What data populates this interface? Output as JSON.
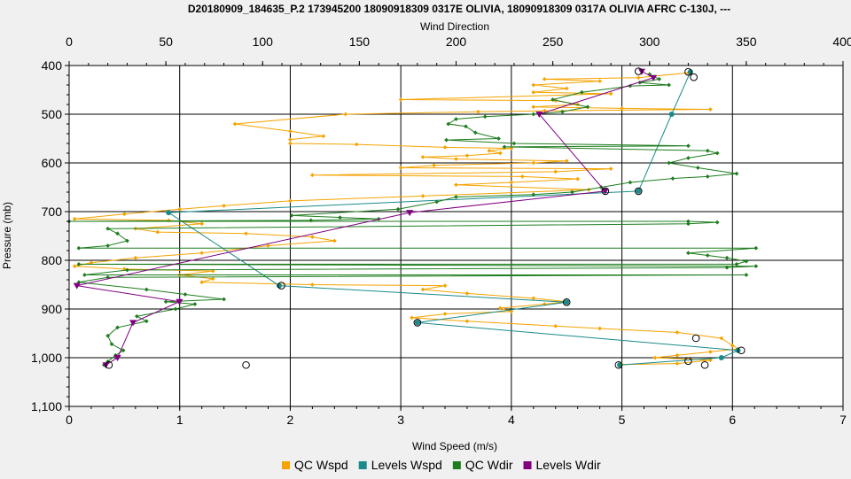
{
  "chart_data": {
    "type": "line",
    "title": "D20180909_184635_P.2 173945200 18090918309 0317E OLIVIA, 18090918309 0317A OLIVIA AFRC C-130J, ---",
    "xlabel_top": "Wind Direction",
    "xlabel_bottom": "Wind Speed (m/s)",
    "ylabel": "Pressure (mb)",
    "ylim": [
      400,
      1100
    ],
    "y_inverted": true,
    "xlim_top": [
      0,
      400
    ],
    "xlim_bottom": [
      0,
      7
    ],
    "xticks_top": [
      "0",
      "50",
      "100",
      "150",
      "200",
      "250",
      "300",
      "350",
      "400"
    ],
    "xticks_bottom": [
      "0",
      "1",
      "2",
      "3",
      "4",
      "5",
      "6",
      "7"
    ],
    "yticks": [
      "400",
      "500",
      "600",
      "700",
      "800",
      "900",
      "1,000",
      "1,100"
    ],
    "grid": true,
    "legend_position": "bottom",
    "series": [
      {
        "name": "QC Wspd",
        "axis": "bottom",
        "color": "#f5a300",
        "marker": "diamond",
        "points": [
          [
            5.6,
            415
          ],
          [
            5.15,
            425
          ],
          [
            4.3,
            428
          ],
          [
            4.8,
            432
          ],
          [
            4.2,
            440
          ],
          [
            4.5,
            447
          ],
          [
            4.2,
            455
          ],
          [
            4.9,
            458
          ],
          [
            3.0,
            470
          ],
          [
            4.4,
            472
          ],
          [
            4.6,
            480
          ],
          [
            4.2,
            485
          ],
          [
            5.0,
            488
          ],
          [
            5.8,
            490
          ],
          [
            4.3,
            493
          ],
          [
            3.7,
            495
          ],
          [
            2.5,
            500
          ],
          [
            1.5,
            520
          ],
          [
            2.0,
            535
          ],
          [
            2.3,
            545
          ],
          [
            2.0,
            552
          ],
          [
            2.0,
            560
          ],
          [
            2.6,
            562
          ],
          [
            3.4,
            568
          ],
          [
            4.0,
            570
          ],
          [
            3.8,
            575
          ],
          [
            3.9,
            580
          ],
          [
            3.6,
            585
          ],
          [
            3.2,
            588
          ],
          [
            3.5,
            592
          ],
          [
            4.5,
            596
          ],
          [
            4.2,
            600
          ],
          [
            3.3,
            605
          ],
          [
            3.0,
            610
          ],
          [
            4.9,
            612
          ],
          [
            4.4,
            618
          ],
          [
            2.2,
            625
          ],
          [
            4.1,
            628
          ],
          [
            4.6,
            633
          ],
          [
            4.0,
            640
          ],
          [
            3.5,
            645
          ],
          [
            4.7,
            655
          ],
          [
            3.2,
            668
          ],
          [
            2.0,
            678
          ],
          [
            1.4,
            688
          ],
          [
            1.0,
            695
          ],
          [
            0.5,
            705
          ],
          [
            0.05,
            715
          ],
          [
            0.9,
            718
          ],
          [
            1.2,
            725
          ],
          [
            0.6,
            735
          ],
          [
            0.8,
            742
          ],
          [
            1.6,
            745
          ],
          [
            2.2,
            752
          ],
          [
            2.4,
            760
          ],
          [
            1.8,
            770
          ],
          [
            1.2,
            785
          ],
          [
            0.6,
            795
          ],
          [
            0.2,
            805
          ],
          [
            0.05,
            812
          ],
          [
            0.5,
            818
          ],
          [
            1.3,
            822
          ],
          [
            1.0,
            830
          ],
          [
            1.3,
            838
          ],
          [
            1.2,
            845
          ],
          [
            2.2,
            850
          ],
          [
            3.4,
            852
          ],
          [
            3.2,
            860
          ],
          [
            3.6,
            868
          ],
          [
            4.2,
            878
          ],
          [
            4.5,
            885
          ],
          [
            4.3,
            890
          ],
          [
            3.9,
            898
          ],
          [
            4.0,
            905
          ],
          [
            3.4,
            910
          ],
          [
            3.1,
            918
          ],
          [
            3.6,
            925
          ],
          [
            4.4,
            935
          ],
          [
            4.8,
            940
          ],
          [
            5.5,
            948
          ],
          [
            5.9,
            960
          ],
          [
            6.0,
            975
          ],
          [
            6.05,
            982
          ],
          [
            5.8,
            988
          ],
          [
            5.5,
            995
          ],
          [
            5.3,
            1000
          ],
          [
            5.8,
            1005
          ],
          [
            5.5,
            1012
          ],
          [
            5.0,
            1014
          ]
        ]
      },
      {
        "name": "Levels Wspd",
        "axis": "bottom",
        "color": "#1a8a8a",
        "marker": "circle",
        "points": [
          [
            5.62,
            413
          ],
          [
            5.45,
            500
          ],
          [
            5.15,
            658
          ],
          [
            0.9,
            702
          ],
          [
            1.9,
            852
          ],
          [
            4.5,
            886
          ],
          [
            3.15,
            928
          ],
          [
            6.05,
            985
          ],
          [
            5.9,
            1000
          ],
          [
            4.98,
            1015
          ]
        ]
      },
      {
        "name": "QC Wdir",
        "axis": "top",
        "color": "#1e7d1e",
        "marker": "diamond",
        "points": [
          [
            300,
            418
          ],
          [
            305,
            428
          ],
          [
            295,
            435
          ],
          [
            310,
            440
          ],
          [
            290,
            442
          ],
          [
            265,
            455
          ],
          [
            250,
            470
          ],
          [
            268,
            485
          ],
          [
            255,
            495
          ],
          [
            240,
            500
          ],
          [
            215,
            505
          ],
          [
            200,
            510
          ],
          [
            196,
            520
          ],
          [
            205,
            525
          ],
          [
            210,
            538
          ],
          [
            222,
            550
          ],
          [
            195,
            553
          ],
          [
            230,
            560
          ],
          [
            320,
            565
          ],
          [
            225,
            567
          ],
          [
            330,
            575
          ],
          [
            335,
            580
          ],
          [
            320,
            590
          ],
          [
            310,
            600
          ],
          [
            325,
            610
          ],
          [
            345,
            622
          ],
          [
            330,
            628
          ],
          [
            312,
            632
          ],
          [
            290,
            640
          ],
          [
            275,
            650
          ],
          [
            260,
            660
          ],
          [
            240,
            665
          ],
          [
            200,
            670
          ],
          [
            190,
            680
          ],
          [
            170,
            695
          ],
          [
            115,
            708
          ],
          [
            140,
            712
          ],
          [
            160,
            715
          ],
          [
            125,
            718
          ],
          [
            0,
            720
          ],
          [
            320,
            720
          ],
          [
            335,
            722
          ],
          [
            320,
            725
          ],
          [
            20,
            735
          ],
          [
            25,
            745
          ],
          [
            30,
            760
          ],
          [
            20,
            770
          ],
          [
            5,
            775
          ],
          [
            355,
            775
          ],
          [
            320,
            785
          ],
          [
            330,
            790
          ],
          [
            340,
            795
          ],
          [
            350,
            802
          ],
          [
            345,
            808
          ],
          [
            5,
            808
          ],
          [
            355,
            812
          ],
          [
            340,
            815
          ],
          [
            30,
            820
          ],
          [
            8,
            830
          ],
          [
            350,
            830
          ],
          [
            20,
            835
          ],
          [
            5,
            845
          ],
          [
            40,
            860
          ],
          [
            60,
            870
          ],
          [
            80,
            880
          ],
          [
            50,
            885
          ],
          [
            65,
            890
          ],
          [
            55,
            900
          ],
          [
            35,
            915
          ],
          [
            40,
            925
          ],
          [
            25,
            938
          ],
          [
            20,
            955
          ],
          [
            22,
            972
          ],
          [
            28,
            985
          ],
          [
            24,
            995
          ],
          [
            20,
            1008
          ],
          [
            18,
            1015
          ]
        ]
      },
      {
        "name": "Levels Wdir",
        "axis": "top",
        "color": "#800080",
        "marker": "triangle",
        "points": [
          [
            296,
            412
          ],
          [
            302,
            425
          ],
          [
            243,
            500
          ],
          [
            277,
            658
          ],
          [
            176,
            702
          ],
          [
            4,
            852
          ],
          [
            57,
            885
          ],
          [
            33,
            928
          ],
          [
            25,
            1000
          ],
          [
            19,
            1015
          ]
        ]
      }
    ],
    "extra_markers": {
      "color": "#000000",
      "marker": "open-circle",
      "axis": "bottom",
      "points": [
        [
          5.15,
          412
        ],
        [
          5.6,
          413
        ],
        [
          5.65,
          424
        ],
        [
          4.85,
          658
        ],
        [
          5.15,
          658
        ],
        [
          1.92,
          852
        ],
        [
          4.5,
          886
        ],
        [
          3.15,
          928
        ],
        [
          5.67,
          960
        ],
        [
          6.08,
          985
        ],
        [
          5.6,
          1007
        ],
        [
          5.75,
          1015
        ],
        [
          4.97,
          1015
        ],
        [
          1.6,
          1015
        ],
        [
          0.36,
          1015
        ]
      ]
    }
  }
}
